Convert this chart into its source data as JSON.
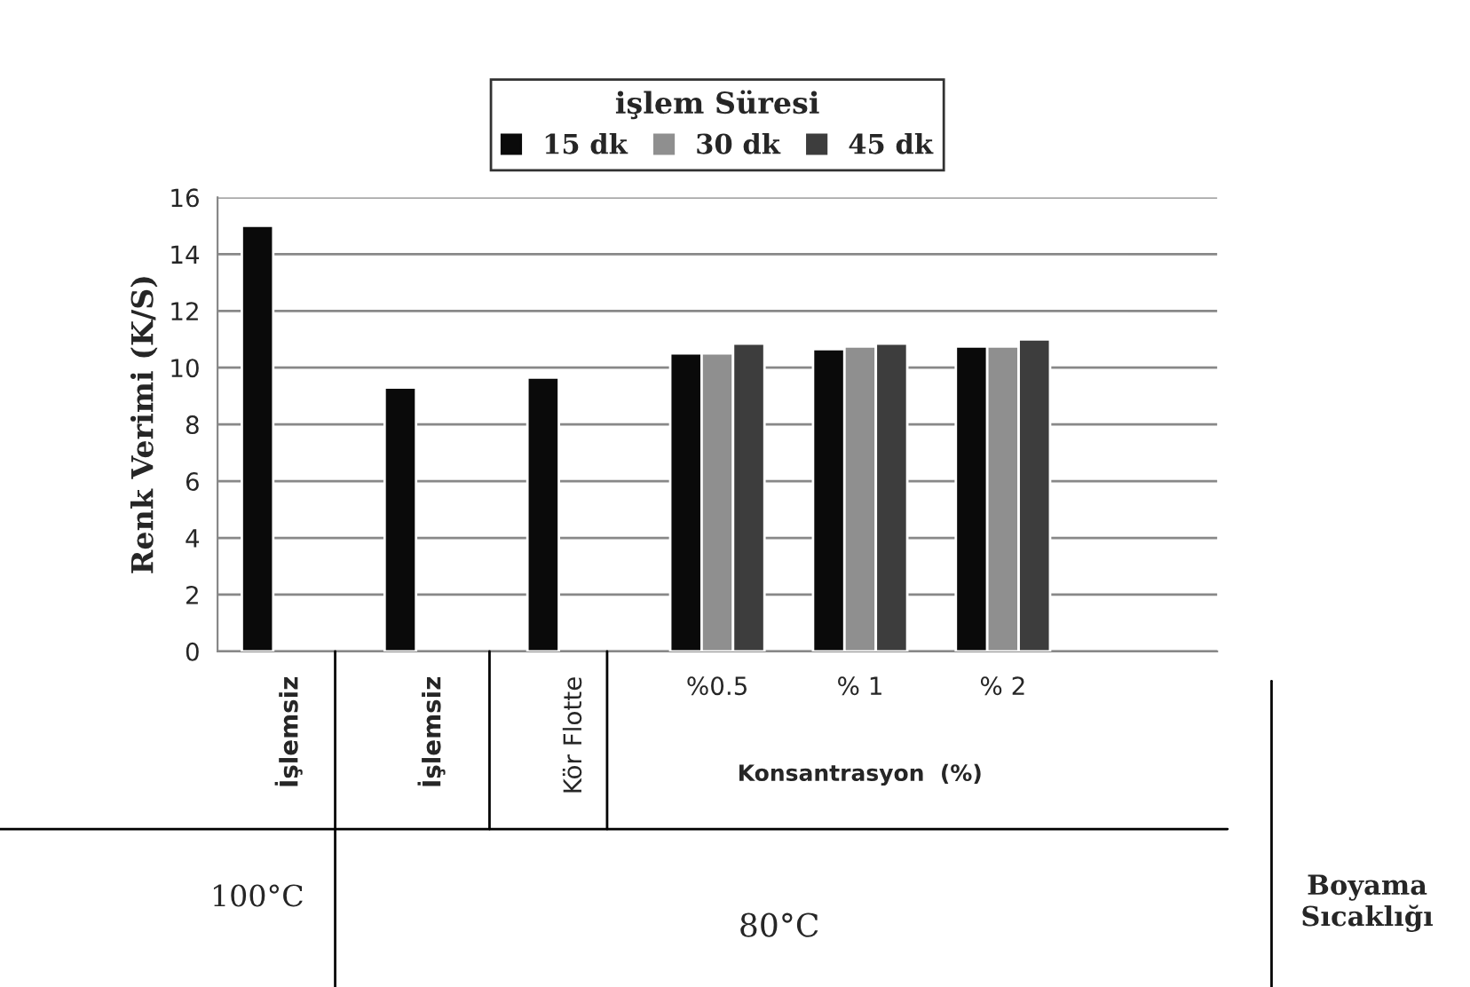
{
  "chart_data": {
    "type": "bar",
    "legend_title": "işlem Süresi",
    "ylabel": "Renk Verimi (K/S)",
    "categories": [
      "İşlemsiz",
      "İşlemsiz",
      "Kör Flotte",
      "%0.5",
      "% 1",
      "% 2",
      null
    ],
    "series": [
      {
        "name": "15 dk",
        "color": "#0a0a0a",
        "values": [
          15.0,
          9.3,
          9.65,
          10.5,
          10.65,
          10.75,
          null
        ]
      },
      {
        "name": "30 dk",
        "color": "#8f8f8f",
        "values": [
          null,
          null,
          null,
          10.5,
          10.75,
          10.75,
          null
        ]
      },
      {
        "name": "45 dk",
        "color": "#3d3d3d",
        "values": [
          null,
          null,
          null,
          10.85,
          10.85,
          11.0,
          null
        ]
      }
    ],
    "ylim": [
      0,
      16
    ],
    "yticks": [
      0,
      2,
      4,
      6,
      8,
      10,
      12,
      14,
      16
    ],
    "grid": "y",
    "legend": "top",
    "annotations": [
      "Konsantrasyon  (%)",
      "100°C",
      "80°C",
      "Boyama\nSıcaklığı"
    ]
  }
}
